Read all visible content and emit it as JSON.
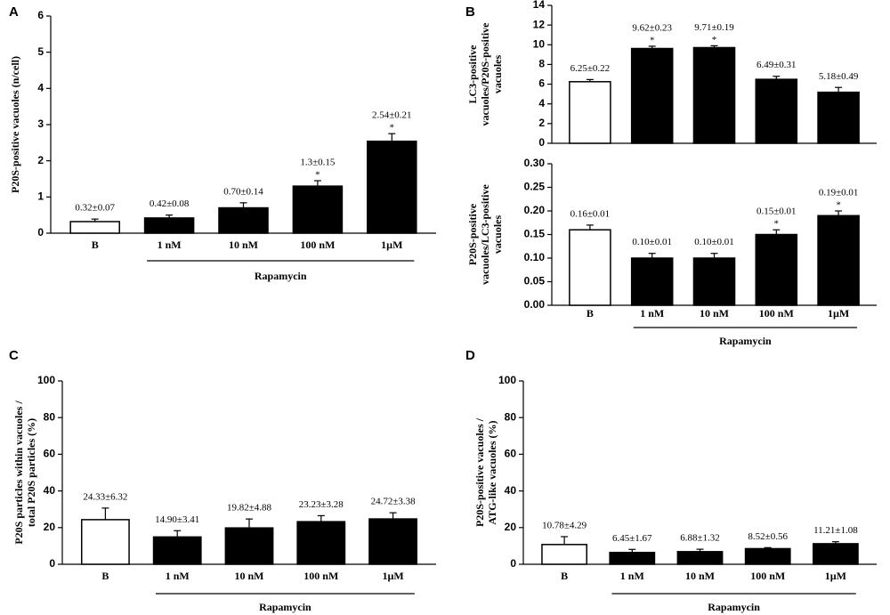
{
  "chart_data": [
    {
      "type": "bar",
      "panel": "A",
      "ylabel": [
        "P20S-positive vacuoles (n/cell)"
      ],
      "categories": [
        "B",
        "1 nM",
        "10 nM",
        "100 nM",
        "1µM"
      ],
      "values": [
        0.32,
        0.42,
        0.7,
        1.3,
        2.54
      ],
      "errors": [
        0.07,
        0.08,
        0.14,
        0.15,
        0.21
      ],
      "value_labels": [
        "0.32±0.07",
        "0.42±0.08",
        "0.70±0.14",
        "1.3±0.15",
        "2.54±0.21"
      ],
      "significant": [
        false,
        false,
        false,
        true,
        true
      ],
      "significance_label": "*",
      "bar_colors": [
        "#ffffff",
        "#000000",
        "#000000",
        "#000000",
        "#000000"
      ],
      "edge_color": "#000000",
      "group_label": "Rapamycin",
      "group_start": 1,
      "ylim": [
        0,
        6
      ],
      "yticks": [
        0,
        1,
        2,
        3,
        4,
        5,
        6
      ]
    },
    {
      "type": "bar",
      "panel": "B",
      "ylabel": [
        "LC3-positive",
        "vacuoles/P20S-positive",
        "vacuoles"
      ],
      "values": [
        6.25,
        9.62,
        9.71,
        6.49,
        5.18
      ],
      "errors": [
        0.22,
        0.23,
        0.19,
        0.31,
        0.49
      ],
      "value_labels": [
        "6.25±0.22",
        "9.62±0.23",
        "9.71±0.19",
        "6.49±0.31",
        "5.18±0.49"
      ],
      "significant": [
        false,
        true,
        true,
        false,
        false
      ],
      "significance_label": "*",
      "bar_colors": [
        "#ffffff",
        "#000000",
        "#000000",
        "#000000",
        "#000000"
      ],
      "edge_color": "#000000",
      "ylim": [
        0,
        14
      ],
      "yticks": [
        0,
        2,
        4,
        6,
        8,
        10,
        12,
        14
      ]
    },
    {
      "type": "bar",
      "ylabel": [
        "P20S-positive",
        "vacuoles/LC3-positive",
        "vacuoles"
      ],
      "categories": [
        "B",
        "1 nM",
        "10 nM",
        "100 nM",
        "1µM"
      ],
      "values": [
        0.16,
        0.1,
        0.1,
        0.15,
        0.19
      ],
      "errors": [
        0.01,
        0.01,
        0.01,
        0.01,
        0.01
      ],
      "value_labels": [
        "0.16±0.01",
        "0.10±0.01",
        "0.10±0.01",
        "0.15±0.01",
        "0.19±0.01"
      ],
      "significant": [
        false,
        false,
        false,
        true,
        true
      ],
      "significance_label": "*",
      "bar_colors": [
        "#ffffff",
        "#000000",
        "#000000",
        "#000000",
        "#000000"
      ],
      "edge_color": "#000000",
      "group_label": "Rapamycin",
      "group_start": 1,
      "ylim": [
        0,
        0.3
      ],
      "yticks": [
        {
          "value": 0,
          "label": "0.00"
        },
        0.05,
        {
          "value": 0.1,
          "label": "0.10"
        },
        0.15,
        {
          "value": 0.2,
          "label": "0.20"
        },
        0.25,
        {
          "value": 0.3,
          "label": "0.30"
        }
      ]
    },
    {
      "type": "bar",
      "panel": "C",
      "ylabel": [
        "P20S particles within vacuoles /",
        "total P20S particles (%)"
      ],
      "categories": [
        "B",
        "1 nM",
        "10 nM",
        "100 nM",
        "1µM"
      ],
      "values": [
        24.33,
        14.9,
        19.82,
        23.23,
        24.72
      ],
      "errors": [
        6.32,
        3.41,
        4.88,
        3.28,
        3.38
      ],
      "value_labels": [
        "24.33±6.32",
        "14.90±3.41",
        "19.82±4.88",
        "23.23±3.28",
        "24.72±3.38"
      ],
      "significant": [
        false,
        false,
        false,
        false,
        false
      ],
      "significance_label": "*",
      "bar_colors": [
        "#ffffff",
        "#000000",
        "#000000",
        "#000000",
        "#000000"
      ],
      "edge_color": "#000000",
      "group_label": "Rapamycin",
      "group_start": 1,
      "ylim": [
        0,
        100
      ],
      "yticks": [
        0,
        20,
        40,
        60,
        80,
        100
      ]
    },
    {
      "type": "bar",
      "panel": "D",
      "ylabel": [
        "P20S-positive vacuoles /",
        "ATG-like vacuoles (%)"
      ],
      "categories": [
        "B",
        "1 nM",
        "10 nM",
        "100 nM",
        "1µM"
      ],
      "values": [
        10.78,
        6.45,
        6.88,
        8.52,
        11.21
      ],
      "errors": [
        4.29,
        1.67,
        1.32,
        0.56,
        1.08
      ],
      "value_labels": [
        "10.78±4.29",
        "6.45±1.67",
        "6.88±1.32",
        "8.52±0.56",
        "11.21±1.08"
      ],
      "significant": [
        false,
        false,
        false,
        false,
        false
      ],
      "significance_label": "*",
      "bar_colors": [
        "#ffffff",
        "#000000",
        "#000000",
        "#000000",
        "#000000"
      ],
      "edge_color": "#000000",
      "group_label": "Rapamycin",
      "group_start": 1,
      "ylim": [
        0,
        100
      ],
      "yticks": [
        0,
        20,
        40,
        60,
        80,
        100
      ]
    }
  ]
}
